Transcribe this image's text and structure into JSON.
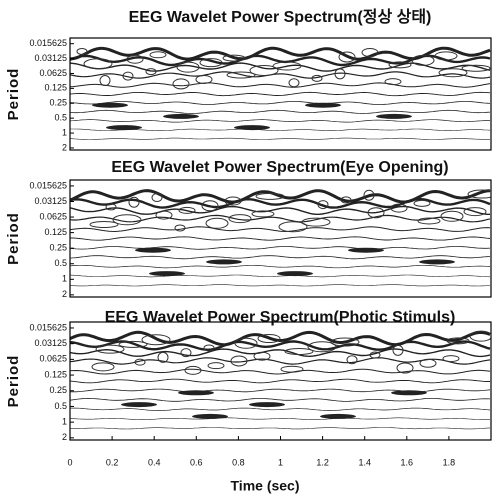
{
  "chart_data": [
    {
      "type": "contour",
      "title": "EEG Wavelet Power Spectrum(정상 상태)",
      "ylabel": "Period",
      "log_scale": true,
      "ylim": [
        2.2,
        0.012
      ],
      "yticks": [
        0.015625,
        0.03125,
        0.0625,
        0.125,
        0.25,
        0.5,
        1,
        2
      ],
      "xlim": [
        0,
        2
      ]
    },
    {
      "type": "contour",
      "title": "EEG Wavelet Power Spectrum(Eye Opening)",
      "ylabel": "Period",
      "log_scale": true,
      "ylim": [
        2.2,
        0.012
      ],
      "yticks": [
        0.015625,
        0.03125,
        0.0625,
        0.125,
        0.25,
        0.5,
        1,
        2
      ],
      "xlim": [
        0,
        2
      ]
    },
    {
      "type": "contour",
      "title": "EEG Wavelet Power Spectrum(Photic Stimuls)",
      "ylabel": "Period",
      "log_scale": true,
      "ylim": [
        2.2,
        0.012
      ],
      "yticks": [
        0.015625,
        0.03125,
        0.0625,
        0.125,
        0.25,
        0.5,
        1,
        2
      ],
      "xlim": [
        0,
        2
      ],
      "xticks": [
        0,
        0.2,
        0.4,
        0.6,
        0.8,
        1,
        1.2,
        1.4,
        1.6,
        1.8
      ],
      "xlabel": "Time (sec)"
    }
  ]
}
